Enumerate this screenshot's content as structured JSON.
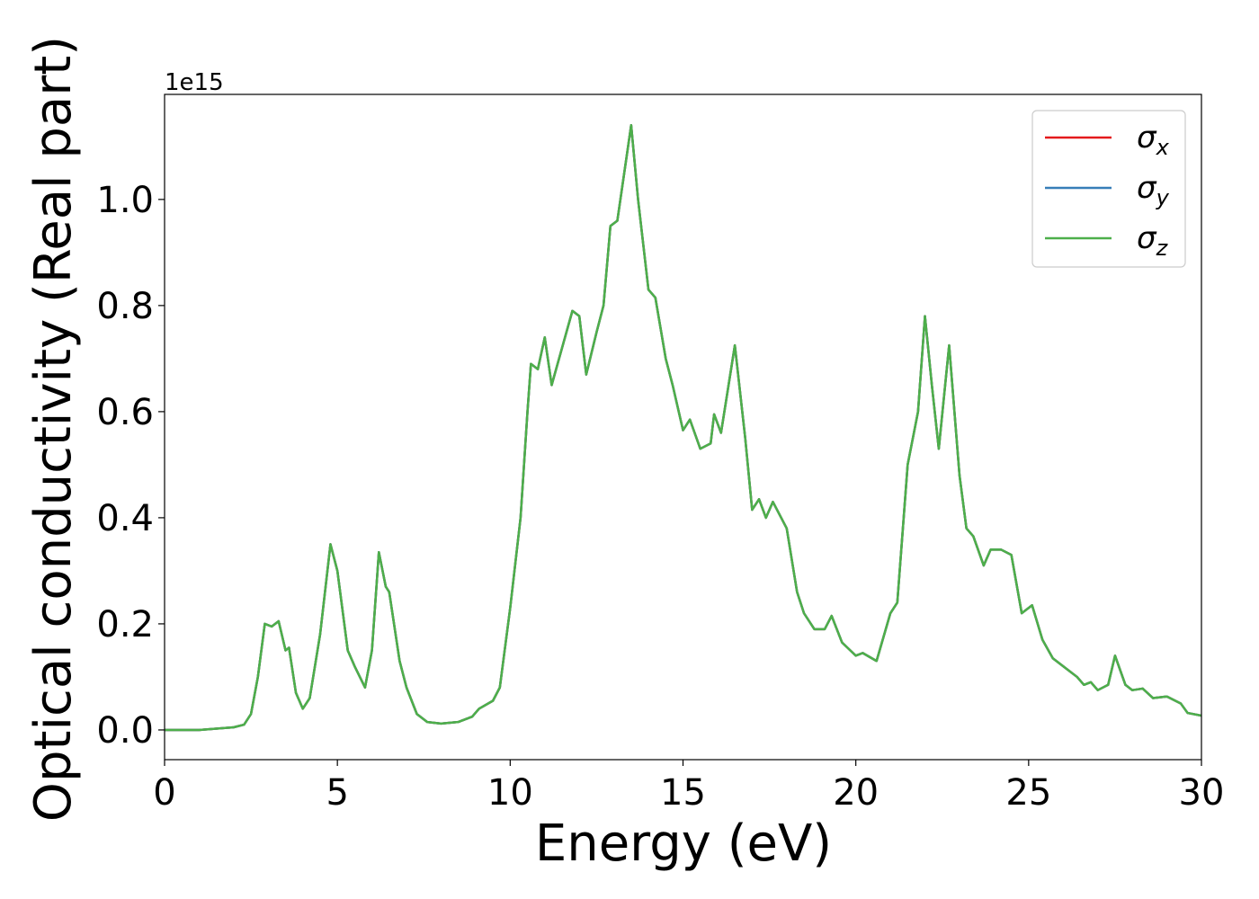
{
  "chart_data": {
    "type": "line",
    "xlabel": "Energy (eV)",
    "ylabel": "Optical conductivity (Real part)",
    "offset_text": "1e15",
    "x": [
      0,
      1,
      2,
      2.3,
      2.5,
      2.7,
      2.9,
      3.1,
      3.3,
      3.5,
      3.6,
      3.8,
      4.0,
      4.2,
      4.5,
      4.8,
      5.0,
      5.3,
      5.5,
      5.8,
      6.0,
      6.2,
      6.4,
      6.5,
      6.8,
      7.0,
      7.3,
      7.6,
      8.0,
      8.5,
      8.9,
      9.1,
      9.5,
      9.7,
      10.0,
      10.3,
      10.5,
      10.6,
      10.8,
      11.0,
      11.2,
      11.5,
      11.8,
      12.0,
      12.2,
      12.5,
      12.7,
      12.9,
      13.1,
      13.5,
      13.7,
      14.0,
      14.2,
      14.5,
      14.7,
      15.0,
      15.2,
      15.5,
      15.8,
      15.9,
      16.1,
      16.5,
      16.8,
      17.0,
      17.2,
      17.4,
      17.6,
      18.0,
      18.3,
      18.5,
      18.8,
      19.1,
      19.3,
      19.6,
      20.0,
      20.2,
      20.6,
      21.0,
      21.2,
      21.5,
      21.8,
      22.0,
      22.2,
      22.4,
      22.7,
      23.0,
      23.2,
      23.4,
      23.7,
      23.9,
      24.2,
      24.5,
      24.8,
      25.1,
      25.4,
      25.7,
      26.0,
      26.4,
      26.6,
      26.8,
      27.0,
      27.3,
      27.5,
      27.8,
      28.0,
      28.3,
      28.6,
      29.0,
      29.4,
      29.6,
      30.0
    ],
    "series": [
      {
        "name": "σx",
        "color": "#e41a1c",
        "values": [
          0,
          0,
          0.005,
          0.01,
          0.03,
          0.1,
          0.2,
          0.195,
          0.205,
          0.15,
          0.155,
          0.07,
          0.04,
          0.06,
          0.18,
          0.35,
          0.3,
          0.15,
          0.12,
          0.08,
          0.15,
          0.335,
          0.27,
          0.26,
          0.13,
          0.08,
          0.03,
          0.015,
          0.012,
          0.015,
          0.025,
          0.04,
          0.055,
          0.08,
          0.23,
          0.4,
          0.6,
          0.69,
          0.68,
          0.74,
          0.65,
          0.72,
          0.79,
          0.78,
          0.67,
          0.75,
          0.8,
          0.95,
          0.96,
          1.14,
          1.0,
          0.83,
          0.815,
          0.7,
          0.65,
          0.565,
          0.585,
          0.53,
          0.54,
          0.595,
          0.56,
          0.725,
          0.55,
          0.415,
          0.435,
          0.4,
          0.43,
          0.38,
          0.26,
          0.22,
          0.19,
          0.19,
          0.215,
          0.165,
          0.14,
          0.145,
          0.13,
          0.22,
          0.24,
          0.5,
          0.6,
          0.78,
          0.65,
          0.53,
          0.725,
          0.48,
          0.38,
          0.365,
          0.31,
          0.34,
          0.34,
          0.33,
          0.22,
          0.235,
          0.17,
          0.135,
          0.12,
          0.1,
          0.085,
          0.09,
          0.075,
          0.085,
          0.14,
          0.085,
          0.075,
          0.078,
          0.06,
          0.063,
          0.05,
          0.032,
          0.027
        ]
      },
      {
        "name": "σy",
        "color": "#377eb8",
        "values": [
          0,
          0,
          0.005,
          0.01,
          0.03,
          0.1,
          0.2,
          0.195,
          0.205,
          0.15,
          0.155,
          0.07,
          0.04,
          0.06,
          0.18,
          0.35,
          0.3,
          0.15,
          0.12,
          0.08,
          0.15,
          0.335,
          0.27,
          0.26,
          0.13,
          0.08,
          0.03,
          0.015,
          0.012,
          0.015,
          0.025,
          0.04,
          0.055,
          0.08,
          0.23,
          0.4,
          0.6,
          0.69,
          0.68,
          0.74,
          0.65,
          0.72,
          0.79,
          0.78,
          0.67,
          0.75,
          0.8,
          0.95,
          0.96,
          1.14,
          1.0,
          0.83,
          0.815,
          0.7,
          0.65,
          0.565,
          0.585,
          0.53,
          0.54,
          0.595,
          0.56,
          0.725,
          0.55,
          0.415,
          0.435,
          0.4,
          0.43,
          0.38,
          0.26,
          0.22,
          0.19,
          0.19,
          0.215,
          0.165,
          0.14,
          0.145,
          0.13,
          0.22,
          0.24,
          0.5,
          0.6,
          0.78,
          0.65,
          0.53,
          0.725,
          0.48,
          0.38,
          0.365,
          0.31,
          0.34,
          0.34,
          0.33,
          0.22,
          0.235,
          0.17,
          0.135,
          0.12,
          0.1,
          0.085,
          0.09,
          0.075,
          0.085,
          0.14,
          0.085,
          0.075,
          0.078,
          0.06,
          0.063,
          0.05,
          0.032,
          0.027
        ]
      },
      {
        "name": "σz",
        "color": "#4daf4a",
        "values": [
          0,
          0,
          0.005,
          0.01,
          0.03,
          0.1,
          0.2,
          0.195,
          0.205,
          0.15,
          0.155,
          0.07,
          0.04,
          0.06,
          0.18,
          0.35,
          0.3,
          0.15,
          0.12,
          0.08,
          0.15,
          0.335,
          0.27,
          0.26,
          0.13,
          0.08,
          0.03,
          0.015,
          0.012,
          0.015,
          0.025,
          0.04,
          0.055,
          0.08,
          0.23,
          0.4,
          0.6,
          0.69,
          0.68,
          0.74,
          0.65,
          0.72,
          0.79,
          0.78,
          0.67,
          0.75,
          0.8,
          0.95,
          0.96,
          1.14,
          1.0,
          0.83,
          0.815,
          0.7,
          0.65,
          0.565,
          0.585,
          0.53,
          0.54,
          0.595,
          0.56,
          0.725,
          0.55,
          0.415,
          0.435,
          0.4,
          0.43,
          0.38,
          0.26,
          0.22,
          0.19,
          0.19,
          0.215,
          0.165,
          0.14,
          0.145,
          0.13,
          0.22,
          0.24,
          0.5,
          0.6,
          0.78,
          0.65,
          0.53,
          0.725,
          0.48,
          0.38,
          0.365,
          0.31,
          0.34,
          0.34,
          0.33,
          0.22,
          0.235,
          0.17,
          0.135,
          0.12,
          0.1,
          0.085,
          0.09,
          0.075,
          0.085,
          0.14,
          0.085,
          0.075,
          0.078,
          0.06,
          0.063,
          0.05,
          0.032,
          0.027
        ]
      }
    ],
    "xlim": [
      0,
      30
    ],
    "xticks": [
      0,
      5,
      10,
      15,
      20,
      25,
      30
    ],
    "ylim": [
      -0.056,
      1.198
    ],
    "yticks": [
      {
        "value": 0,
        "label": "0.0"
      },
      {
        "value": 0.2,
        "label": "0.2"
      },
      {
        "value": 0.4,
        "label": "0.4"
      },
      {
        "value": 0.6,
        "label": "0.6"
      },
      {
        "value": 0.8,
        "label": "0.8"
      },
      {
        "value": 1,
        "label": "1.0"
      }
    ],
    "grid": false,
    "legend": "upper right"
  }
}
